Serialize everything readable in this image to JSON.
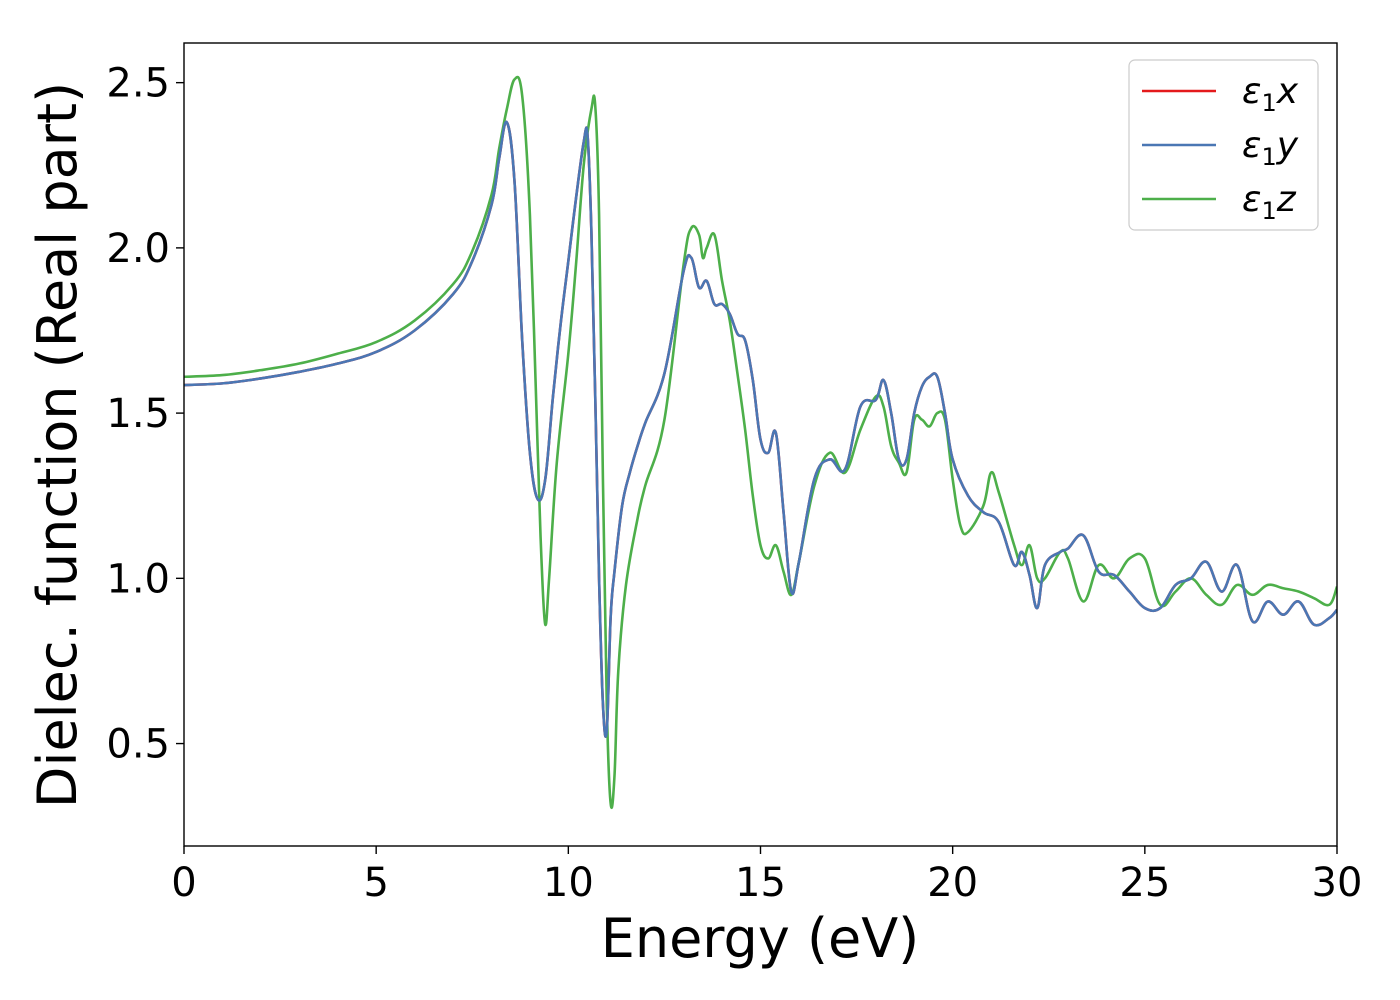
{
  "chart_data": {
    "type": "line",
    "title": "",
    "xlabel": "Energy (eV)",
    "ylabel": "Dielec. function (Real part)",
    "xlim": [
      0,
      30
    ],
    "ylim": [
      0.19,
      2.62
    ],
    "xticks": [
      0,
      5,
      10,
      15,
      20,
      25,
      30
    ],
    "xtick_labels": [
      "0",
      "5",
      "10",
      "15",
      "20",
      "25",
      "30"
    ],
    "yticks": [
      0.5,
      1.0,
      1.5,
      2.0,
      2.5
    ],
    "ytick_labels": [
      "0.5",
      "1.0",
      "1.5",
      "2.0",
      "2.5"
    ],
    "grid": false,
    "legend_position": "top-right",
    "series": [
      {
        "name": "ε₁x",
        "legend": {
          "main": "ε",
          "sub": "1",
          "var": "x"
        },
        "color": "#e41a1c",
        "x": [
          0,
          1,
          2,
          3,
          4,
          5,
          6,
          7,
          7.5,
          8,
          8.2,
          8.4,
          8.6,
          8.8,
          9.0,
          9.2,
          9.4,
          9.6,
          9.8,
          10.0,
          10.2,
          10.4,
          10.5,
          10.6,
          10.7,
          10.8,
          10.9,
          11.0,
          11.1,
          11.2,
          11.4,
          11.6,
          11.8,
          12.0,
          12.5,
          13.0,
          13.2,
          13.4,
          13.6,
          13.8,
          14.0,
          14.2,
          14.4,
          14.6,
          14.8,
          15.0,
          15.2,
          15.4,
          15.6,
          15.8,
          16.0,
          16.4,
          16.8,
          17.2,
          17.6,
          18.0,
          18.2,
          18.4,
          18.6,
          18.8,
          19.0,
          19.2,
          19.4,
          19.6,
          19.8,
          20.0,
          20.4,
          20.8,
          21.2,
          21.6,
          21.8,
          22.0,
          22.2,
          22.4,
          22.8,
          23.0,
          23.4,
          23.8,
          24.2,
          24.6,
          25.0,
          25.4,
          25.8,
          26.2,
          26.6,
          27.0,
          27.4,
          27.8,
          28.2,
          28.6,
          29.0,
          29.4,
          29.8,
          30.0
        ],
        "y": [
          1.585,
          1.59,
          1.605,
          1.625,
          1.65,
          1.685,
          1.75,
          1.86,
          1.96,
          2.13,
          2.27,
          2.38,
          2.2,
          1.72,
          1.38,
          1.24,
          1.3,
          1.55,
          1.77,
          1.96,
          2.15,
          2.32,
          2.34,
          2.05,
          1.55,
          1.0,
          0.62,
          0.54,
          0.88,
          1.02,
          1.22,
          1.32,
          1.4,
          1.47,
          1.62,
          1.93,
          1.97,
          1.88,
          1.9,
          1.83,
          1.83,
          1.8,
          1.74,
          1.72,
          1.6,
          1.42,
          1.38,
          1.44,
          1.2,
          0.96,
          1.05,
          1.3,
          1.36,
          1.33,
          1.52,
          1.54,
          1.6,
          1.5,
          1.36,
          1.36,
          1.5,
          1.58,
          1.61,
          1.61,
          1.5,
          1.36,
          1.25,
          1.2,
          1.17,
          1.04,
          1.08,
          1.01,
          0.91,
          1.04,
          1.08,
          1.09,
          1.13,
          1.02,
          1.01,
          0.96,
          0.91,
          0.91,
          0.98,
          1.0,
          1.05,
          0.96,
          1.04,
          0.87,
          0.93,
          0.89,
          0.93,
          0.86,
          0.88,
          0.905
        ]
      },
      {
        "name": "ε₁y",
        "legend": {
          "main": "ε",
          "sub": "1",
          "var": "y"
        },
        "color": "#4a77b4",
        "x": [
          0,
          1,
          2,
          3,
          4,
          5,
          6,
          7,
          7.5,
          8,
          8.2,
          8.4,
          8.6,
          8.8,
          9.0,
          9.2,
          9.4,
          9.6,
          9.8,
          10.0,
          10.2,
          10.4,
          10.5,
          10.6,
          10.7,
          10.8,
          10.9,
          11.0,
          11.1,
          11.2,
          11.4,
          11.6,
          11.8,
          12.0,
          12.5,
          13.0,
          13.2,
          13.4,
          13.6,
          13.8,
          14.0,
          14.2,
          14.4,
          14.6,
          14.8,
          15.0,
          15.2,
          15.4,
          15.6,
          15.8,
          16.0,
          16.4,
          16.8,
          17.2,
          17.6,
          18.0,
          18.2,
          18.4,
          18.6,
          18.8,
          19.0,
          19.2,
          19.4,
          19.6,
          19.8,
          20.0,
          20.4,
          20.8,
          21.2,
          21.6,
          21.8,
          22.0,
          22.2,
          22.4,
          22.8,
          23.0,
          23.4,
          23.8,
          24.2,
          24.6,
          25.0,
          25.4,
          25.8,
          26.2,
          26.6,
          27.0,
          27.4,
          27.8,
          28.2,
          28.6,
          29.0,
          29.4,
          29.8,
          30.0
        ],
        "y": [
          1.585,
          1.59,
          1.605,
          1.625,
          1.65,
          1.685,
          1.75,
          1.86,
          1.96,
          2.13,
          2.27,
          2.38,
          2.2,
          1.72,
          1.38,
          1.24,
          1.3,
          1.55,
          1.77,
          1.96,
          2.15,
          2.32,
          2.34,
          2.05,
          1.55,
          1.0,
          0.62,
          0.54,
          0.88,
          1.02,
          1.22,
          1.32,
          1.4,
          1.47,
          1.62,
          1.93,
          1.97,
          1.88,
          1.9,
          1.83,
          1.83,
          1.8,
          1.74,
          1.72,
          1.6,
          1.42,
          1.38,
          1.44,
          1.2,
          0.96,
          1.05,
          1.3,
          1.36,
          1.33,
          1.52,
          1.54,
          1.6,
          1.5,
          1.36,
          1.36,
          1.5,
          1.58,
          1.61,
          1.61,
          1.5,
          1.36,
          1.25,
          1.2,
          1.17,
          1.04,
          1.08,
          1.01,
          0.91,
          1.04,
          1.08,
          1.09,
          1.13,
          1.02,
          1.01,
          0.96,
          0.91,
          0.91,
          0.98,
          1.0,
          1.05,
          0.96,
          1.04,
          0.87,
          0.93,
          0.89,
          0.93,
          0.86,
          0.88,
          0.905
        ]
      },
      {
        "name": "ε₁z",
        "legend": {
          "main": "ε",
          "sub": "1",
          "var": "z"
        },
        "color": "#4daf4a",
        "x": [
          0,
          1,
          2,
          3,
          4,
          5,
          6,
          7,
          7.5,
          8,
          8.2,
          8.4,
          8.6,
          8.8,
          9.0,
          9.2,
          9.3,
          9.4,
          9.5,
          9.7,
          10.0,
          10.2,
          10.4,
          10.6,
          10.7,
          10.8,
          10.9,
          11.0,
          11.1,
          11.2,
          11.3,
          11.5,
          11.8,
          12.0,
          12.5,
          13.0,
          13.2,
          13.4,
          13.5,
          13.6,
          13.8,
          14.0,
          14.2,
          14.4,
          14.6,
          14.8,
          15.0,
          15.2,
          15.4,
          15.6,
          15.8,
          16.0,
          16.4,
          16.8,
          17.2,
          17.6,
          18.0,
          18.2,
          18.4,
          18.6,
          18.8,
          19.0,
          19.2,
          19.4,
          19.6,
          19.8,
          20.0,
          20.2,
          20.4,
          20.8,
          21.0,
          21.2,
          21.6,
          21.8,
          22.0,
          22.2,
          22.4,
          22.8,
          23.0,
          23.4,
          23.8,
          24.2,
          24.6,
          25.0,
          25.4,
          25.8,
          26.2,
          26.6,
          27.0,
          27.4,
          27.8,
          28.2,
          28.6,
          29.0,
          29.4,
          29.8,
          30.0
        ],
        "y": [
          1.61,
          1.615,
          1.63,
          1.65,
          1.68,
          1.715,
          1.78,
          1.89,
          1.99,
          2.16,
          2.3,
          2.42,
          2.51,
          2.46,
          2.1,
          1.4,
          1.06,
          0.86,
          1.0,
          1.35,
          1.68,
          1.95,
          2.25,
          2.42,
          2.43,
          2.1,
          1.3,
          0.62,
          0.32,
          0.4,
          0.72,
          0.98,
          1.18,
          1.28,
          1.48,
          1.95,
          2.06,
          2.04,
          1.97,
          2.0,
          2.04,
          1.9,
          1.78,
          1.62,
          1.45,
          1.25,
          1.1,
          1.06,
          1.1,
          1.02,
          0.95,
          1.05,
          1.28,
          1.38,
          1.32,
          1.45,
          1.55,
          1.52,
          1.4,
          1.35,
          1.32,
          1.48,
          1.48,
          1.46,
          1.5,
          1.48,
          1.3,
          1.16,
          1.14,
          1.22,
          1.32,
          1.26,
          1.1,
          1.04,
          1.1,
          1.0,
          1.0,
          1.08,
          1.06,
          0.93,
          1.04,
          1.0,
          1.06,
          1.06,
          0.92,
          0.96,
          1.0,
          0.95,
          0.92,
          0.98,
          0.95,
          0.98,
          0.97,
          0.96,
          0.94,
          0.92,
          0.975
        ]
      }
    ]
  }
}
